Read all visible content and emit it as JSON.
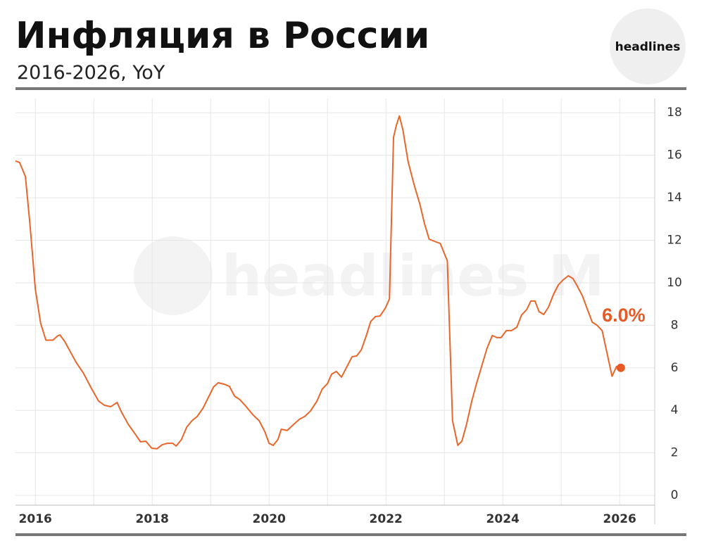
{
  "chart_data": {
    "type": "line",
    "title": "Инфляция в России",
    "subtitle": "2016-2026, YoY",
    "logo": "headlines",
    "watermark": "headlines M",
    "x": [
      2015.66,
      2015.73,
      2015.83,
      2015.91,
      2016.0,
      2016.09,
      2016.18,
      2016.3,
      2016.38,
      2016.42,
      2016.5,
      2016.6,
      2016.7,
      2016.82,
      2016.96,
      2017.08,
      2017.18,
      2017.29,
      2017.4,
      2017.47,
      2017.59,
      2017.71,
      2017.8,
      2017.89,
      2017.99,
      2018.08,
      2018.17,
      2018.26,
      2018.35,
      2018.41,
      2018.5,
      2018.59,
      2018.68,
      2018.77,
      2018.87,
      2018.96,
      2019.05,
      2019.13,
      2019.23,
      2019.32,
      2019.41,
      2019.5,
      2019.61,
      2019.73,
      2019.83,
      2019.93,
      2020.0,
      2020.07,
      2020.15,
      2020.21,
      2020.31,
      2020.41,
      2020.52,
      2020.61,
      2020.71,
      2020.82,
      2020.91,
      2021.0,
      2021.07,
      2021.15,
      2021.24,
      2021.32,
      2021.42,
      2021.5,
      2021.58,
      2021.66,
      2021.74,
      2021.82,
      2021.9,
      2021.99,
      2022.06,
      2022.13,
      2022.18,
      2022.23,
      2022.29,
      2022.38,
      2022.48,
      2022.58,
      2022.66,
      2022.74,
      2022.83,
      2022.93,
      2023.05,
      2023.14,
      2023.23,
      2023.3,
      2023.38,
      2023.47,
      2023.55,
      2023.65,
      2023.73,
      2023.82,
      2023.9,
      2023.97,
      2024.06,
      2024.15,
      2024.24,
      2024.32,
      2024.41,
      2024.48,
      2024.55,
      2024.62,
      2024.7,
      2024.78,
      2024.87,
      2024.95,
      2025.03,
      2025.12,
      2025.2,
      2025.27,
      2025.36,
      2025.44,
      2025.53,
      2025.61,
      2025.7,
      2025.78,
      2025.87,
      2025.95
    ],
    "series": [
      {
        "color": "#e8662a",
        "values": [
          15.73,
          15.66,
          15.0,
          12.7,
          9.7,
          8.1,
          7.3,
          7.3,
          7.5,
          7.55,
          7.25,
          6.75,
          6.25,
          5.76,
          5.03,
          4.44,
          4.24,
          4.17,
          4.37,
          3.94,
          3.34,
          2.88,
          2.52,
          2.55,
          2.22,
          2.19,
          2.38,
          2.45,
          2.45,
          2.32,
          2.62,
          3.21,
          3.51,
          3.71,
          4.1,
          4.6,
          5.1,
          5.3,
          5.23,
          5.13,
          4.67,
          4.5,
          4.17,
          3.77,
          3.51,
          2.98,
          2.45,
          2.35,
          2.62,
          3.11,
          3.05,
          3.31,
          3.58,
          3.71,
          3.97,
          4.44,
          5.0,
          5.26,
          5.7,
          5.83,
          5.56,
          5.99,
          6.52,
          6.56,
          6.85,
          7.48,
          8.18,
          8.41,
          8.44,
          8.81,
          9.24,
          16.85,
          17.42,
          17.85,
          17.19,
          15.7,
          14.64,
          13.71,
          12.78,
          12.05,
          11.95,
          11.85,
          11.03,
          3.51,
          2.35,
          2.55,
          3.34,
          4.44,
          5.26,
          6.19,
          6.92,
          7.52,
          7.42,
          7.42,
          7.75,
          7.75,
          7.91,
          8.48,
          8.74,
          9.14,
          9.14,
          8.64,
          8.51,
          8.84,
          9.47,
          9.9,
          10.13,
          10.33,
          10.2,
          9.87,
          9.4,
          8.81,
          8.15,
          8.01,
          7.75,
          6.75,
          5.6,
          6.09
        ]
      }
    ],
    "highlight": {
      "x": 2026.02,
      "value": 6.0,
      "label": "6.0%",
      "color": "#e85a24"
    },
    "xlim": [
      2015.66,
      2026.6
    ],
    "xticks": [
      2016,
      2018,
      2020,
      2022,
      2024,
      2026
    ],
    "xgrid": [
      2017,
      2019,
      2021,
      2023,
      2025
    ],
    "ylim": [
      -0.46,
      18.67
    ],
    "yticks": [
      0,
      2,
      4,
      6,
      8,
      10,
      12,
      14,
      16,
      18
    ],
    "grid": true
  }
}
